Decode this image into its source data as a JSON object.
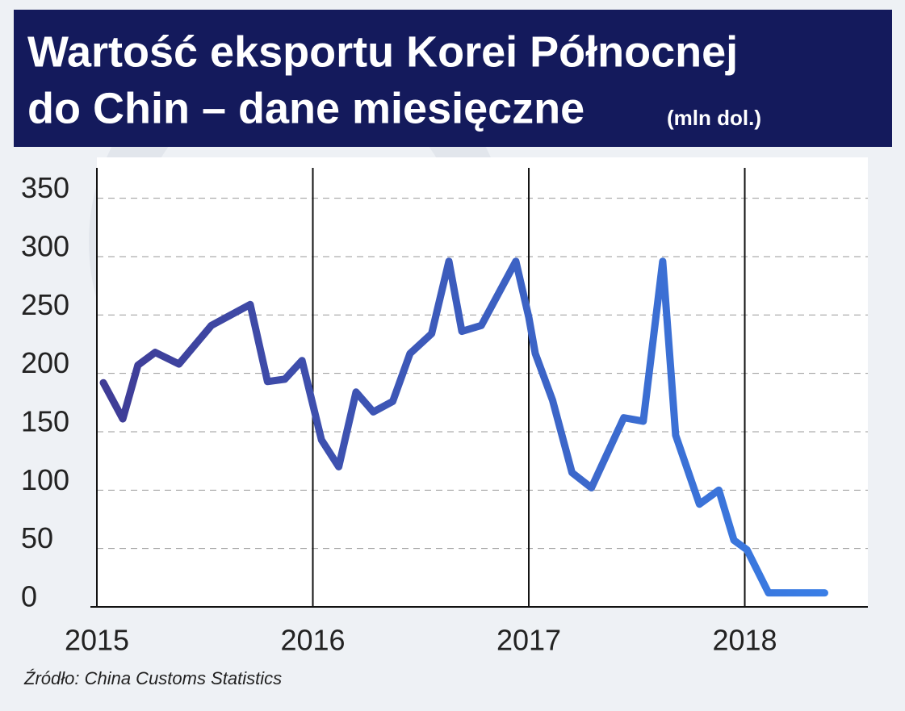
{
  "chart_data": {
    "type": "line",
    "title": "Wartość eksportu Korei Północnej",
    "title_line2": "do Chin – dane miesięczne",
    "subtitle": "(mln dol.)",
    "source": "Źródło: China Customs Statistics",
    "x": [
      2015.03,
      2015.12,
      2015.19,
      2015.27,
      2015.38,
      2015.53,
      2015.71,
      2015.79,
      2015.87,
      2015.95,
      2016.04,
      2016.12,
      2016.2,
      2016.28,
      2016.37,
      2016.45,
      2016.55,
      2016.63,
      2016.69,
      2016.78,
      2016.94,
      2017.0,
      2017.03,
      2017.11,
      2017.2,
      2017.29,
      2017.44,
      2017.53,
      2017.62,
      2017.68,
      2017.79,
      2017.88,
      2017.95,
      2018.01,
      2018.11,
      2018.37
    ],
    "series": [
      {
        "color": "#3a7ee6",
        "gradient": [
          "#3f3c96",
          "#3a7ee6"
        ],
        "values": [
          192,
          161,
          207,
          218,
          208,
          241,
          259,
          193,
          195,
          211,
          143,
          120,
          184,
          167,
          176,
          217,
          234,
          296,
          236,
          241,
          296,
          248,
          217,
          177,
          115,
          102,
          162,
          159,
          296,
          147,
          88,
          100,
          57,
          49,
          12,
          12
        ]
      }
    ],
    "xlim": [
      2015,
      2018.57
    ],
    "xticks": [
      2015,
      2016,
      2017,
      2018
    ],
    "ylim": [
      0,
      385
    ],
    "yticks": [
      0,
      50,
      100,
      150,
      200,
      250,
      300,
      350
    ],
    "grid": true
  }
}
